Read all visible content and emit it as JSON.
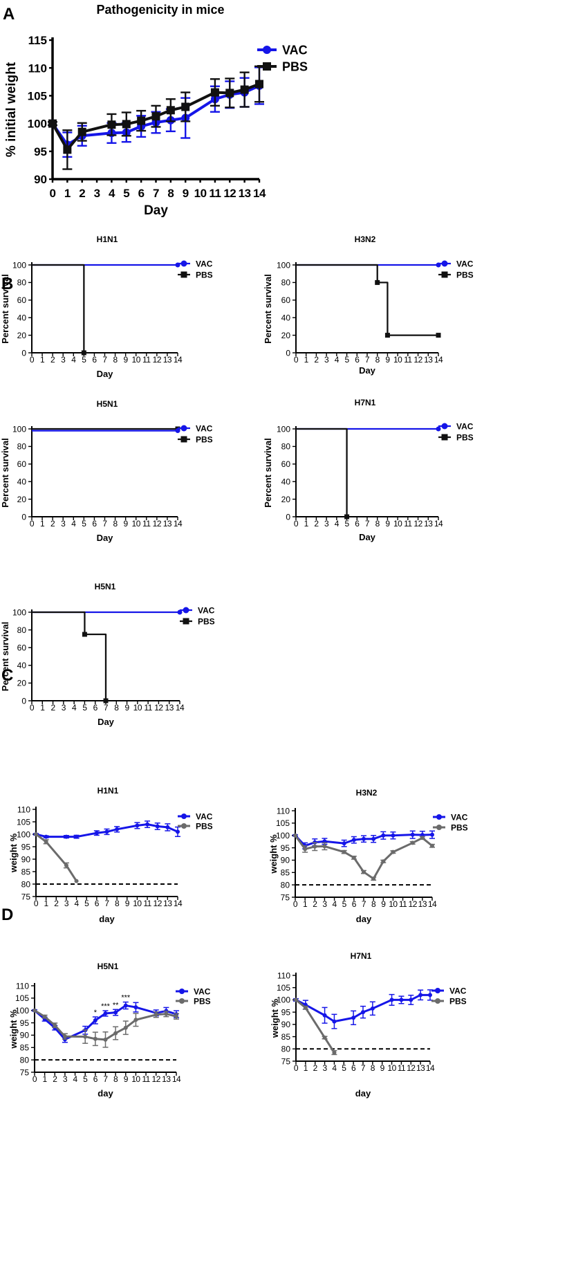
{
  "colors": {
    "vac": "#1515e8",
    "pbs": "#111111",
    "pbs_grey": "#6b6b6b"
  },
  "panels": [
    {
      "letter": "A"
    },
    {
      "letter": "B"
    },
    {
      "letter": "C"
    },
    {
      "letter": "D"
    }
  ],
  "chart_data": [
    {
      "id": "A",
      "type": "line",
      "title": "Pathogenicity in mice",
      "xlabel": "Day",
      "ylabel": "% initial weight",
      "x_ticks": [
        0,
        1,
        2,
        3,
        4,
        5,
        6,
        7,
        8,
        9,
        10,
        11,
        12,
        13,
        14
      ],
      "xlim": [
        0,
        14
      ],
      "ylim": [
        90,
        115
      ],
      "y_ticks": [
        90,
        95,
        100,
        105,
        110,
        115
      ],
      "legend": [
        "VAC",
        "PBS"
      ],
      "series": [
        {
          "name": "VAC",
          "x": [
            0,
            1,
            2,
            4,
            5,
            6,
            7,
            8,
            9,
            11,
            12,
            13,
            14
          ],
          "values": [
            100,
            96.2,
            97.8,
            98.3,
            98.4,
            99.5,
            100.2,
            100.6,
            101,
            104.4,
            105.2,
            105.6,
            106.8
          ],
          "err": [
            0.3,
            2.2,
            1.8,
            1.8,
            1.7,
            1.9,
            1.9,
            2,
            3.6,
            2.3,
            2.4,
            2.6,
            3.3
          ]
        },
        {
          "name": "PBS",
          "x": [
            0,
            1,
            2,
            4,
            5,
            6,
            7,
            8,
            9,
            11,
            12,
            13,
            14
          ],
          "values": [
            100,
            95.3,
            98.5,
            99.8,
            99.9,
            100.5,
            101.3,
            102.4,
            103,
            105.6,
            105.5,
            106.1,
            107.1
          ],
          "err": [
            0.3,
            3.5,
            1.6,
            1.9,
            2.1,
            1.8,
            1.9,
            2.0,
            2.6,
            2.4,
            2.6,
            3.1,
            3.2
          ]
        }
      ]
    },
    {
      "id": "B1",
      "type": "line",
      "subtype": "survival",
      "title": "H1N1",
      "xlabel": "Day",
      "ylabel": "Percent survival",
      "x_ticks": [
        0,
        1,
        2,
        3,
        4,
        5,
        6,
        7,
        8,
        9,
        10,
        11,
        12,
        13,
        14
      ],
      "xlim": [
        0,
        14
      ],
      "ylim": [
        0,
        100
      ],
      "y_ticks": [
        0,
        20,
        40,
        60,
        80,
        100
      ],
      "legend": [
        "VAC",
        "PBS"
      ],
      "series": [
        {
          "name": "VAC",
          "x": [
            0,
            14
          ],
          "values": [
            100,
            100
          ],
          "markers": [
            [
              14,
              100
            ]
          ]
        },
        {
          "name": "PBS",
          "x": [
            0,
            5,
            5
          ],
          "values": [
            100,
            100,
            0
          ],
          "markers": [
            [
              5,
              0
            ]
          ]
        }
      ]
    },
    {
      "id": "B2",
      "type": "line",
      "subtype": "survival",
      "title": "H3N2",
      "xlabel": "Day",
      "ylabel": "Percent survival",
      "x_ticks": [
        0,
        1,
        2,
        3,
        4,
        5,
        6,
        7,
        8,
        9,
        10,
        11,
        12,
        13,
        14
      ],
      "xlim": [
        0,
        14
      ],
      "ylim": [
        0,
        100
      ],
      "y_ticks": [
        0,
        20,
        40,
        60,
        80,
        100
      ],
      "legend": [
        "VAC",
        "PBS"
      ],
      "series": [
        {
          "name": "VAC",
          "x": [
            0,
            14
          ],
          "values": [
            100,
            100
          ],
          "markers": [
            [
              14,
              100
            ]
          ]
        },
        {
          "name": "PBS",
          "x": [
            0,
            8,
            8,
            9,
            9,
            14
          ],
          "values": [
            100,
            100,
            80,
            80,
            20,
            20
          ],
          "markers": [
            [
              8,
              80
            ],
            [
              9,
              20
            ],
            [
              14,
              20
            ]
          ]
        }
      ]
    },
    {
      "id": "B3",
      "type": "line",
      "subtype": "survival",
      "title": "H5N1",
      "xlabel": "Day",
      "ylabel": "Percent survival",
      "x_ticks": [
        0,
        1,
        2,
        3,
        4,
        5,
        6,
        7,
        8,
        9,
        10,
        11,
        12,
        13,
        14
      ],
      "xlim": [
        0,
        14
      ],
      "ylim": [
        0,
        100
      ],
      "y_ticks": [
        0,
        20,
        40,
        60,
        80,
        100
      ],
      "legend": [
        "VAC",
        "PBS"
      ],
      "series": [
        {
          "name": "PBS",
          "x": [
            0,
            14
          ],
          "values": [
            100,
            100
          ],
          "markers": [
            [
              14,
              100
            ]
          ]
        },
        {
          "name": "VAC",
          "x": [
            0,
            14
          ],
          "values": [
            98,
            98
          ],
          "markers": [
            [
              14,
              98
            ]
          ]
        }
      ]
    },
    {
      "id": "B4",
      "type": "line",
      "subtype": "survival",
      "title": "H7N1",
      "xlabel": "Day",
      "ylabel": "Percent survival",
      "x_ticks": [
        0,
        1,
        2,
        3,
        4,
        5,
        6,
        7,
        8,
        9,
        10,
        11,
        12,
        13,
        14
      ],
      "xlim": [
        0,
        14
      ],
      "ylim": [
        0,
        100
      ],
      "y_ticks": [
        0,
        20,
        40,
        60,
        80,
        100
      ],
      "legend": [
        "VAC",
        "PBS"
      ],
      "series": [
        {
          "name": "VAC",
          "x": [
            0,
            14
          ],
          "values": [
            100,
            100
          ],
          "markers": [
            [
              14,
              100
            ]
          ]
        },
        {
          "name": "PBS",
          "x": [
            0,
            5,
            5
          ],
          "values": [
            100,
            100,
            0
          ],
          "markers": [
            [
              5,
              0
            ]
          ]
        }
      ]
    },
    {
      "id": "C1",
      "type": "line",
      "subtype": "survival",
      "title": "H5N1",
      "xlabel": "Day",
      "ylabel": "Percent survival",
      "x_ticks": [
        0,
        1,
        2,
        3,
        4,
        5,
        6,
        7,
        8,
        9,
        10,
        11,
        12,
        13,
        14
      ],
      "xlim": [
        0,
        14
      ],
      "ylim": [
        0,
        100
      ],
      "y_ticks": [
        0,
        20,
        40,
        60,
        80,
        100
      ],
      "legend": [
        "VAC",
        "PBS"
      ],
      "series": [
        {
          "name": "VAC",
          "x": [
            0,
            14
          ],
          "values": [
            100,
            100
          ],
          "markers": [
            [
              14,
              100
            ]
          ]
        },
        {
          "name": "PBS",
          "x": [
            0,
            5,
            5,
            7,
            7
          ],
          "values": [
            100,
            100,
            75,
            75,
            0
          ],
          "markers": [
            [
              5,
              75
            ],
            [
              7,
              0
            ]
          ]
        }
      ]
    },
    {
      "id": "D1",
      "type": "line",
      "title": "H1N1",
      "xlabel": "day",
      "ylabel": "weight %",
      "x_ticks": [
        0,
        1,
        2,
        3,
        4,
        5,
        6,
        7,
        8,
        9,
        10,
        11,
        12,
        13,
        14
      ],
      "xlim": [
        0,
        14
      ],
      "ylim": [
        75,
        110
      ],
      "y_ticks": [
        75,
        80,
        85,
        90,
        95,
        100,
        105,
        110
      ],
      "threshold": 80,
      "legend": [
        "VAC",
        "PBS"
      ],
      "series": [
        {
          "name": "VAC",
          "x": [
            0,
            1,
            3,
            4,
            6,
            7,
            8,
            10,
            11,
            12,
            13,
            14
          ],
          "values": [
            100,
            99,
            99,
            99,
            100.5,
            101,
            102,
            103.5,
            104,
            103.2,
            102.8,
            101
          ],
          "err": [
            0.3,
            0.4,
            0.5,
            0.6,
            0.9,
            1.1,
            1.1,
            1.2,
            1.3,
            1.3,
            1.4,
            1.9
          ]
        },
        {
          "name": "PBS",
          "x": [
            0,
            1,
            3,
            4
          ],
          "values": [
            100,
            97,
            87.5,
            81.2
          ],
          "err": [
            0,
            0.8,
            1,
            0
          ]
        }
      ]
    },
    {
      "id": "D2",
      "type": "line",
      "title": "H3N2",
      "xlabel": "day",
      "ylabel": "weight %",
      "x_ticks": [
        0,
        1,
        2,
        3,
        4,
        5,
        6,
        7,
        8,
        9,
        10,
        11,
        12,
        13,
        14
      ],
      "xlim": [
        0,
        14
      ],
      "ylim": [
        75,
        110
      ],
      "y_ticks": [
        75,
        80,
        85,
        90,
        95,
        100,
        105,
        110
      ],
      "threshold": 80,
      "legend": [
        "VAC",
        "PBS"
      ],
      "series": [
        {
          "name": "VAC",
          "x": [
            0,
            1,
            2,
            3,
            5,
            6,
            7,
            8,
            9,
            10,
            12,
            13,
            14
          ],
          "values": [
            100,
            95.8,
            97.2,
            97.6,
            96.8,
            98.2,
            98.6,
            98.6,
            100,
            100,
            100.3,
            100.2,
            100.3
          ],
          "err": [
            0.3,
            1.2,
            1.4,
            1.2,
            1.3,
            1.3,
            1.3,
            1.4,
            1.5,
            1.4,
            1.5,
            1.5,
            1.5
          ]
        },
        {
          "name": "PBS",
          "x": [
            0,
            1,
            2,
            3,
            5,
            6,
            7,
            8,
            9,
            10,
            12,
            13,
            14
          ],
          "values": [
            100,
            94.5,
            95.5,
            95.6,
            93.3,
            91,
            85.2,
            82.5,
            89.5,
            93.3,
            97,
            99,
            95.8
          ],
          "err": [
            0,
            1.3,
            1.6,
            1.4,
            0.6,
            0.6,
            0.6,
            0.6,
            0.5,
            0.5,
            0.5,
            0.5,
            0.6
          ]
        }
      ]
    },
    {
      "id": "D3",
      "type": "line",
      "title": "H5N1",
      "xlabel": "day",
      "ylabel": "weight %",
      "x_ticks": [
        0,
        1,
        2,
        3,
        4,
        5,
        6,
        7,
        8,
        9,
        10,
        11,
        12,
        13,
        14
      ],
      "xlim": [
        0,
        14
      ],
      "ylim": [
        75,
        110
      ],
      "y_ticks": [
        75,
        80,
        85,
        90,
        95,
        100,
        105,
        110
      ],
      "threshold": 80,
      "legend": [
        "VAC",
        "PBS"
      ],
      "annotations": [
        {
          "x": 6,
          "text": "*"
        },
        {
          "x": 7,
          "text": "***"
        },
        {
          "x": 8,
          "text": "**"
        },
        {
          "x": 9,
          "text": "***"
        }
      ],
      "series": [
        {
          "name": "VAC",
          "x": [
            0,
            1,
            2,
            3,
            5,
            6,
            7,
            8,
            9,
            10,
            12,
            13,
            14
          ],
          "values": [
            100,
            96.5,
            93,
            88.3,
            92,
            96,
            98.8,
            99.2,
            102,
            101.3,
            99,
            99.8,
            98.5
          ],
          "err": [
            0.3,
            0.8,
            0.9,
            1.2,
            1.6,
            1.4,
            1.1,
            1.2,
            1.4,
            1.9,
            1.2,
            1.4,
            1.4
          ]
        },
        {
          "name": "PBS",
          "x": [
            0,
            1,
            2,
            3,
            5,
            6,
            7,
            8,
            9,
            10,
            12,
            13,
            14
          ],
          "values": [
            100,
            97.5,
            94,
            89.5,
            89.4,
            88.5,
            88.2,
            90.8,
            93,
            96.2,
            98.3,
            98.6,
            97.6
          ],
          "err": [
            0,
            0.6,
            0.9,
            1.1,
            2.7,
            2.7,
            3.1,
            2.6,
            2.7,
            2.6,
            1.1,
            1.1,
            1.1
          ]
        }
      ]
    },
    {
      "id": "D4",
      "type": "line",
      "title": "H7N1",
      "xlabel": "day",
      "ylabel": "weight %",
      "x_ticks": [
        0,
        1,
        2,
        3,
        4,
        5,
        6,
        7,
        8,
        9,
        10,
        11,
        12,
        13,
        14
      ],
      "xlim": [
        0,
        14
      ],
      "ylim": [
        75,
        110
      ],
      "y_ticks": [
        75,
        80,
        85,
        90,
        95,
        100,
        105,
        110
      ],
      "threshold": 80,
      "legend": [
        "VAC",
        "PBS"
      ],
      "series": [
        {
          "name": "VAC",
          "x": [
            0,
            1,
            3,
            4,
            6,
            7,
            8,
            10,
            11,
            12,
            13,
            14
          ],
          "values": [
            100,
            98,
            93.7,
            91.2,
            92.7,
            95,
            96.5,
            100,
            100,
            100,
            102,
            102
          ],
          "err": [
            0.5,
            1.8,
            3.2,
            2.9,
            2.8,
            2.4,
            2.7,
            2.2,
            1.5,
            1.9,
            2.0,
            2.1
          ]
        },
        {
          "name": "PBS",
          "x": [
            0,
            1,
            3,
            4
          ],
          "values": [
            100,
            96.8,
            84.6,
            78.5
          ],
          "err": [
            0,
            0.6,
            0.5,
            0.8
          ]
        }
      ]
    }
  ]
}
